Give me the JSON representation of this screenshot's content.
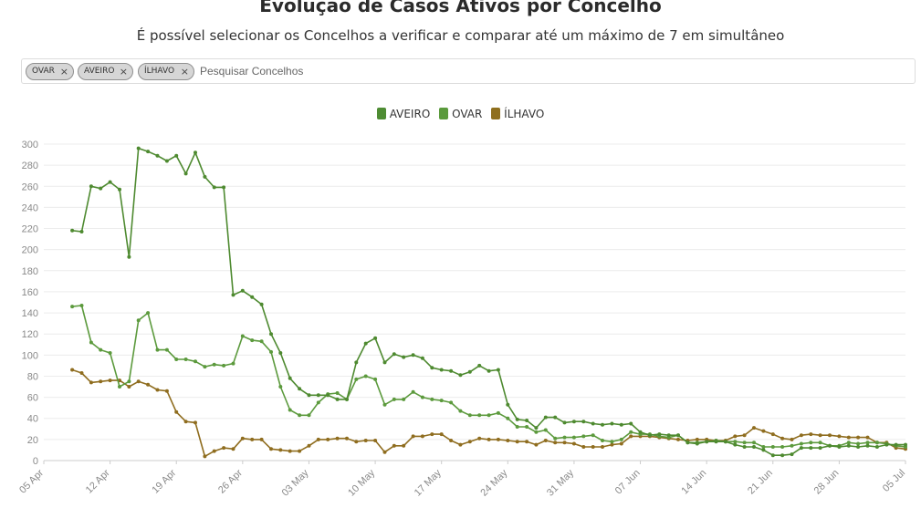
{
  "header": {
    "title": "Evolução de Casos Ativos por Concelho",
    "subtitle": "É possível selecionar os Concelhos a verificar e comparar até um máximo de 7 em simultâneo"
  },
  "search": {
    "placeholder": "Pesquisar Concelhos",
    "chips": [
      {
        "label": "OVAR",
        "remove": "×"
      },
      {
        "label": "AVEIRO",
        "remove": "×"
      },
      {
        "label": "ÍLHAVO",
        "remove": "×"
      }
    ]
  },
  "legend": [
    {
      "label": "AVEIRO",
      "color": "#4e8c33"
    },
    {
      "label": "OVAR",
      "color": "#5a9a3c"
    },
    {
      "label": "ÍLHAVO",
      "color": "#8f6f1e"
    }
  ],
  "chart_data": {
    "type": "line",
    "title": "Evolução de Casos Ativos por Concelho",
    "subtitle": "É possível selecionar os Concelhos a verificar e comparar até um máximo de 7 em simultâneo",
    "xlabel": "",
    "ylabel": "",
    "ylim": [
      0,
      300
    ],
    "yticks": [
      0,
      20,
      40,
      60,
      80,
      100,
      120,
      140,
      160,
      180,
      200,
      220,
      240,
      260,
      280,
      300
    ],
    "xlim": [
      "2020-04-05",
      "2020-07-05"
    ],
    "xticks": [
      {
        "date": "2020-04-05",
        "label": "05 Apr"
      },
      {
        "date": "2020-04-12",
        "label": "12 Apr"
      },
      {
        "date": "2020-04-19",
        "label": "19 Apr"
      },
      {
        "date": "2020-04-26",
        "label": "26 Apr"
      },
      {
        "date": "2020-05-03",
        "label": "03 May"
      },
      {
        "date": "2020-05-10",
        "label": "10 May"
      },
      {
        "date": "2020-05-17",
        "label": "17 May"
      },
      {
        "date": "2020-05-24",
        "label": "24 May"
      },
      {
        "date": "2020-05-31",
        "label": "31 May"
      },
      {
        "date": "2020-06-07",
        "label": "07 Jun"
      },
      {
        "date": "2020-06-14",
        "label": "14 Jun"
      },
      {
        "date": "2020-06-21",
        "label": "21 Jun"
      },
      {
        "date": "2020-06-28",
        "label": "28 Jun"
      },
      {
        "date": "2020-07-05",
        "label": "05 Jul"
      }
    ],
    "grid": true,
    "legend_position": "top-center",
    "x_start": "2020-04-08",
    "series": [
      {
        "name": "OVAR",
        "color": "#4e8a30",
        "values": [
          218,
          217,
          260,
          258,
          264,
          257,
          193,
          296,
          293,
          289,
          284,
          289,
          272,
          292,
          269,
          259,
          259,
          157,
          161,
          155,
          148,
          120,
          102,
          78,
          68,
          62,
          62,
          62,
          58,
          58,
          93,
          111,
          116,
          93,
          101,
          98,
          100,
          97,
          88,
          86,
          85,
          81,
          84,
          90,
          85,
          86,
          53,
          39,
          38,
          31,
          41,
          41,
          36,
          37,
          37,
          35,
          34,
          35,
          34,
          35,
          27,
          24,
          25,
          24,
          24,
          17,
          16,
          18,
          18,
          18,
          15,
          13,
          13,
          10,
          5,
          5,
          6,
          12,
          12,
          12,
          14,
          13,
          14,
          13,
          14,
          13,
          15,
          15,
          15
        ]
      },
      {
        "name": "AVEIRO",
        "color": "#5c9a3d",
        "values": [
          146,
          147,
          112,
          105,
          102,
          70,
          75,
          133,
          140,
          105,
          105,
          96,
          96,
          94,
          89,
          91,
          90,
          92,
          118,
          114,
          113,
          103,
          70,
          48,
          43,
          43,
          55,
          63,
          64,
          58,
          77,
          80,
          77,
          53,
          58,
          58,
          65,
          60,
          58,
          57,
          55,
          47,
          43,
          43,
          43,
          45,
          40,
          32,
          32,
          27,
          29,
          21,
          22,
          22,
          23,
          24,
          19,
          18,
          20,
          27,
          25,
          25,
          23,
          22,
          24,
          17,
          17,
          18,
          19,
          18,
          18,
          17,
          17,
          13,
          13,
          13,
          14,
          16,
          17,
          17,
          14,
          14,
          17,
          16,
          17,
          17,
          16,
          14,
          13
        ]
      },
      {
        "name": "ÍLHAVO",
        "color": "#8f6d1f",
        "values": [
          86,
          83,
          74,
          75,
          76,
          76,
          70,
          75,
          72,
          67,
          66,
          46,
          37,
          36,
          4,
          9,
          12,
          11,
          21,
          20,
          20,
          11,
          10,
          9,
          9,
          14,
          20,
          20,
          21,
          21,
          18,
          19,
          19,
          8,
          14,
          14,
          23,
          23,
          25,
          25,
          19,
          15,
          18,
          21,
          20,
          20,
          19,
          18,
          18,
          15,
          19,
          17,
          17,
          16,
          13,
          13,
          13,
          15,
          16,
          23,
          23,
          23,
          22,
          21,
          20,
          19,
          20,
          20,
          19,
          19,
          23,
          24,
          31,
          28,
          25,
          21,
          20,
          24,
          25,
          24,
          24,
          23,
          22,
          22,
          22,
          17,
          17,
          12,
          11
        ]
      }
    ]
  }
}
